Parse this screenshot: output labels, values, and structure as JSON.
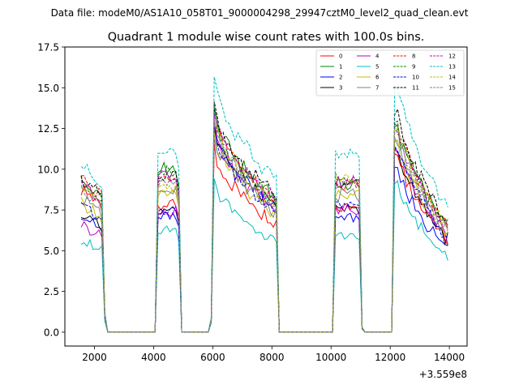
{
  "suptitle": "Data file: modeM0/AS1A10_058T01_9000004298_29947cztM0_level2_quad_clean.evt",
  "chart_data": {
    "type": "line",
    "title": "Quadrant 1 module wise count rates with 100.0s bins.",
    "xlabel": "",
    "ylabel": "",
    "x_offset_label": "+3.559e8",
    "xlim": [
      1000,
      14600
    ],
    "ylim": [
      -0.85,
      17.5
    ],
    "xticks": [
      2000,
      4000,
      6000,
      8000,
      10000,
      12000,
      14000
    ],
    "xtick_labels": [
      "2000",
      "4000",
      "6000",
      "8000",
      "10000",
      "12000",
      "14000"
    ],
    "yticks": [
      0,
      2.5,
      5,
      7.5,
      10,
      12.5,
      15,
      17.5
    ],
    "ytick_labels": [
      "0.0",
      "2.5",
      "5.0",
      "7.5",
      "10.0",
      "12.5",
      "15.0",
      "17.5"
    ],
    "grid": false,
    "legend_location": "top-right",
    "time_grid": {
      "start": 1550,
      "step": 100,
      "count": 125
    },
    "segments": [
      {
        "start": 1550,
        "end": 2250,
        "shape": "drift",
        "shape_value": -0.12,
        "edge_out": [
          2350,
          0.12
        ]
      },
      {
        "start": 2450,
        "end": 4050,
        "shape": "zero"
      },
      {
        "start": 4150,
        "end": 4850,
        "shape": "flat",
        "edge_in": [
          4150,
          0.98
        ],
        "edge_out": [
          4850,
          0.9
        ]
      },
      {
        "start": 4950,
        "end": 5950,
        "shape": "zero"
      },
      {
        "start": 6050,
        "end": 8150,
        "shape": "decay",
        "shape_value": 0.4,
        "edge_in": [
          5950,
          0.06
        ],
        "edge_out": [
          8250,
          0.0
        ]
      },
      {
        "start": 8250,
        "end": 10050,
        "shape": "zero"
      },
      {
        "start": 10050,
        "end": 10950,
        "shape": "flat",
        "edge_out": [
          11050,
          0.03
        ]
      },
      {
        "start": 11050,
        "end": 12050,
        "shape": "zero"
      },
      {
        "start": 12150,
        "end": 14050,
        "shape": "decay",
        "shape_value": 0.55,
        "edge_in": [
          12150,
          0.92
        ]
      }
    ],
    "series": [
      {
        "name": "0",
        "color": "#ff0000",
        "dash": "solid",
        "seg_levels": [
          8.9,
          0,
          7.9,
          0,
          11.2,
          0,
          7.6,
          0,
          11.9
        ]
      },
      {
        "name": "1",
        "color": "#008000",
        "dash": "solid",
        "seg_levels": [
          9.3,
          0,
          10.0,
          0,
          13.5,
          0,
          9.1,
          0,
          13.7
        ]
      },
      {
        "name": "2",
        "color": "#0000ff",
        "dash": "solid",
        "seg_levels": [
          7.2,
          0,
          7.2,
          0,
          12.5,
          0,
          7.0,
          0,
          11.0
        ]
      },
      {
        "name": "3",
        "color": "#000000",
        "dash": "solid",
        "seg_levels": [
          7.3,
          0,
          7.4,
          0,
          12.7,
          0,
          7.6,
          0,
          12.2
        ]
      },
      {
        "name": "4",
        "color": "#bf00bf",
        "dash": "solid",
        "seg_levels": [
          6.7,
          0,
          7.4,
          0,
          12.5,
          0,
          7.4,
          0,
          12.3
        ]
      },
      {
        "name": "5",
        "color": "#00bfbf",
        "dash": "solid",
        "seg_levels": [
          5.7,
          0,
          6.2,
          0,
          9.3,
          0,
          6.0,
          0,
          9.9
        ]
      },
      {
        "name": "6",
        "color": "#bfbf00",
        "dash": "solid",
        "seg_levels": [
          8.0,
          0,
          8.5,
          0,
          12.0,
          0,
          8.3,
          0,
          12.7
        ]
      },
      {
        "name": "7",
        "color": "#808080",
        "dash": "solid",
        "seg_levels": [
          8.3,
          0,
          8.8,
          0,
          12.2,
          0,
          8.4,
          0,
          13.0
        ]
      },
      {
        "name": "8",
        "color": "#ff0000",
        "dash": "dashed",
        "seg_levels": [
          9.6,
          0,
          9.3,
          0,
          13.4,
          0,
          9.0,
          0,
          13.9
        ]
      },
      {
        "name": "9",
        "color": "#008000",
        "dash": "dashed",
        "seg_levels": [
          9.2,
          0,
          9.8,
          0,
          13.2,
          0,
          9.4,
          0,
          14.0
        ]
      },
      {
        "name": "10",
        "color": "#0000ff",
        "dash": "dashed",
        "seg_levels": [
          7.8,
          0,
          7.5,
          0,
          12.3,
          0,
          7.8,
          0,
          12.4
        ]
      },
      {
        "name": "11",
        "color": "#000000",
        "dash": "dashed",
        "seg_levels": [
          9.4,
          0,
          9.6,
          0,
          13.8,
          0,
          9.2,
          0,
          14.5
        ]
      },
      {
        "name": "12",
        "color": "#bf00bf",
        "dash": "dashed",
        "seg_levels": [
          9.2,
          0,
          9.6,
          0,
          13.3,
          0,
          9.2,
          0,
          13.6
        ]
      },
      {
        "name": "13",
        "color": "#00bfbf",
        "dash": "dashed",
        "seg_levels": [
          10.2,
          0,
          11.2,
          0,
          15.4,
          0,
          10.9,
          0,
          16.3
        ]
      },
      {
        "name": "14",
        "color": "#bfbf00",
        "dash": "dashed",
        "seg_levels": [
          8.9,
          0,
          9.0,
          0,
          13.1,
          0,
          9.4,
          0,
          13.5
        ]
      },
      {
        "name": "15",
        "color": "#808080",
        "dash": "dashed",
        "seg_levels": [
          8.8,
          0,
          9.1,
          0,
          13.0,
          0,
          9.0,
          0,
          13.3
        ]
      }
    ]
  }
}
